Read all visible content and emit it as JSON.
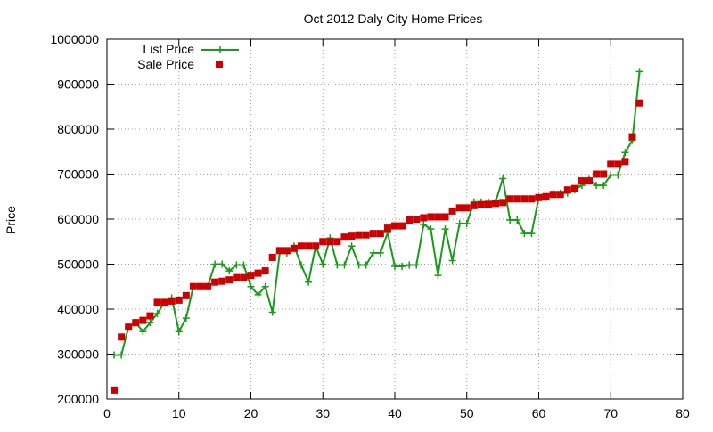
{
  "chart_data": {
    "type": "line",
    "title": "Oct 2012 Daly City Home Prices",
    "xlabel": "",
    "ylabel": "Price",
    "xlim": [
      0,
      80
    ],
    "ylim": [
      200000,
      1000000
    ],
    "x_ticks": [
      "0",
      "10",
      "20",
      "30",
      "40",
      "50",
      "60",
      "70",
      "80"
    ],
    "y_ticks": [
      "200000",
      "300000",
      "400000",
      "500000",
      "600000",
      "700000",
      "800000",
      "900000",
      "1000000"
    ],
    "grid": true,
    "legend_position": "top-left",
    "series": [
      {
        "name": "List Price",
        "style": "line-with-plus-markers",
        "color": "#1a9a1a",
        "x": [
          1,
          2,
          3,
          4,
          5,
          6,
          7,
          8,
          9,
          10,
          11,
          12,
          13,
          14,
          15,
          16,
          17,
          18,
          19,
          20,
          21,
          22,
          23,
          24,
          25,
          26,
          27,
          28,
          29,
          30,
          31,
          32,
          33,
          34,
          35,
          36,
          37,
          38,
          39,
          40,
          41,
          42,
          43,
          44,
          45,
          46,
          47,
          48,
          49,
          50,
          51,
          52,
          53,
          54,
          55,
          56,
          57,
          58,
          59,
          60,
          61,
          62,
          63,
          64,
          65,
          66,
          67,
          68,
          69,
          70,
          71,
          72,
          73,
          74
        ],
        "y": [
          298000,
          298000,
          360000,
          370000,
          350000,
          370000,
          390000,
          415000,
          425000,
          350000,
          380000,
          450000,
          450000,
          450000,
          500000,
          500000,
          485000,
          498000,
          498000,
          450000,
          432000,
          450000,
          393000,
          525000,
          525000,
          540000,
          498000,
          460000,
          540000,
          500000,
          558000,
          498000,
          498000,
          540000,
          498000,
          498000,
          525000,
          525000,
          570000,
          495000,
          495000,
          498000,
          498000,
          588000,
          578000,
          475000,
          578000,
          508000,
          590000,
          590000,
          638000,
          638000,
          638000,
          638000,
          690000,
          598000,
          598000,
          568000,
          568000,
          648000,
          648000,
          658000,
          658000,
          658000,
          665000,
          675000,
          688000,
          675000,
          675000,
          698000,
          698000,
          748000,
          775000,
          928000
        ]
      },
      {
        "name": "Sale Price",
        "style": "square-markers",
        "color": "#cc0000",
        "x": [
          1,
          2,
          3,
          4,
          5,
          6,
          7,
          8,
          9,
          10,
          11,
          12,
          13,
          14,
          15,
          16,
          17,
          18,
          19,
          20,
          21,
          22,
          23,
          24,
          25,
          26,
          27,
          28,
          29,
          30,
          31,
          32,
          33,
          34,
          35,
          36,
          37,
          38,
          39,
          40,
          41,
          42,
          43,
          44,
          45,
          46,
          47,
          48,
          49,
          50,
          51,
          52,
          53,
          54,
          55,
          56,
          57,
          58,
          59,
          60,
          61,
          62,
          63,
          64,
          65,
          66,
          67,
          68,
          69,
          70,
          71,
          72,
          73,
          74
        ],
        "y": [
          220000,
          338000,
          360000,
          370000,
          375000,
          385000,
          415000,
          415000,
          418000,
          420000,
          430000,
          450000,
          450000,
          450000,
          460000,
          462000,
          465000,
          470000,
          470000,
          475000,
          480000,
          485000,
          515000,
          530000,
          530000,
          535000,
          540000,
          540000,
          540000,
          550000,
          550000,
          550000,
          560000,
          562000,
          565000,
          565000,
          568000,
          568000,
          580000,
          585000,
          585000,
          598000,
          600000,
          603000,
          605000,
          605000,
          605000,
          618000,
          625000,
          625000,
          630000,
          632000,
          633000,
          635000,
          637000,
          645000,
          645000,
          645000,
          645000,
          648000,
          650000,
          655000,
          655000,
          665000,
          668000,
          685000,
          685000,
          700000,
          700000,
          722000,
          722000,
          728000,
          783000,
          858000
        ]
      }
    ]
  }
}
